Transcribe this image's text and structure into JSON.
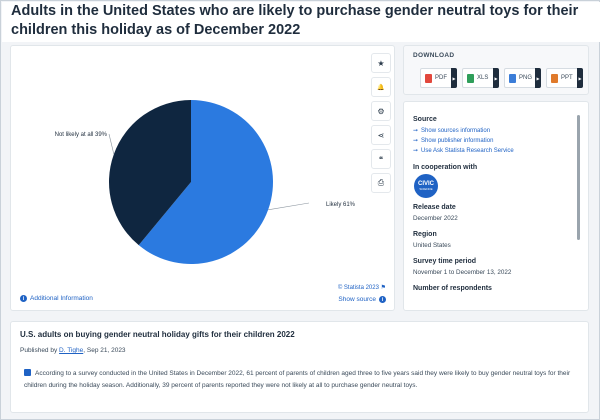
{
  "page": {
    "title": "Adults in the United States who are likely to purchase gender neutral toys for their children this holiday as of December 2022"
  },
  "chart_data": {
    "type": "pie",
    "categories": [
      "Likely",
      "Not likely at all"
    ],
    "values": [
      61,
      39
    ],
    "labels": [
      "Likely 61%",
      "Not likely at all 39%"
    ],
    "colors": [
      "#2b7ae0",
      "#0f2640"
    ]
  },
  "chart_footer": {
    "credit": "© Statista 2023",
    "additional_info": "Additional Information",
    "show_source": "Show source"
  },
  "tools": {
    "icons": [
      "star-icon",
      "bell-icon",
      "gear-icon",
      "share-icon",
      "quote-icon",
      "print-icon"
    ],
    "glyphs": [
      "★",
      "🔔",
      "⚙",
      "⋖",
      "❝",
      "⎙"
    ]
  },
  "download": {
    "title": "DOWNLOAD",
    "buttons": [
      {
        "label": "PDF",
        "color": "#e2483d"
      },
      {
        "label": "XLS",
        "color": "#2f9e5a"
      },
      {
        "label": "PNG",
        "color": "#3b7dd8"
      },
      {
        "label": "PPT",
        "color": "#e07a2b"
      }
    ]
  },
  "info": {
    "source_heading": "Source",
    "source_links": [
      "Show sources information",
      "Show publisher information",
      "Use Ask Statista Research Service"
    ],
    "cooperation_heading": "In cooperation with",
    "civic_logo": {
      "line1": "CIVIC",
      "line2": "SCIENCE"
    },
    "release_heading": "Release date",
    "release_value": "December 2022",
    "region_heading": "Region",
    "region_value": "United States",
    "survey_heading": "Survey time period",
    "survey_value": "November 1 to December 13, 2022",
    "respondents_heading": "Number of respondents"
  },
  "description": {
    "title": "U.S. adults on buying gender neutral holiday gifts for their children 2022",
    "published_prefix": "Published by",
    "author": "D. Tighe",
    "date": ", Sep 21, 2023",
    "text": "According to a survey conducted in the United States in December 2022, 61 percent of parents of children aged three to five years said they were likely to buy gender neutral toys for their children during the holiday season. Additionally, 39 percent of parents reported they were not likely at all to purchase gender neutral toys."
  }
}
